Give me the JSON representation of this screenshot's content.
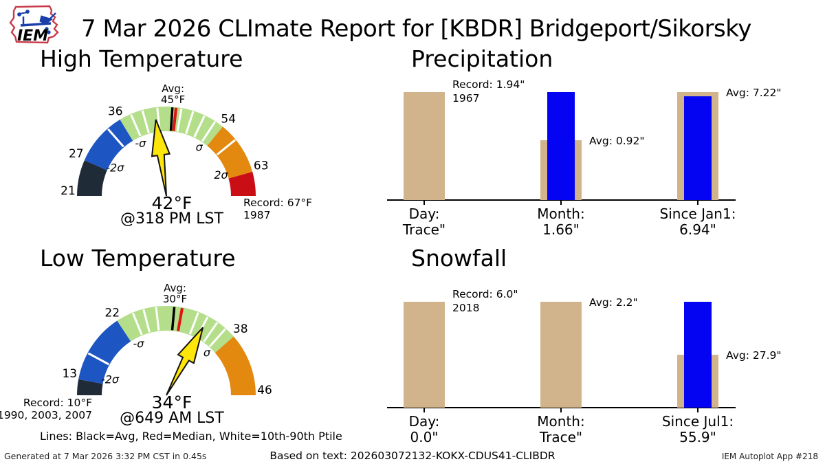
{
  "header": {
    "logo_text": "IEM",
    "title": "7 Mar 2026 CLImate Report for [KBDR] Bridgeport/Sikorsky"
  },
  "legend_note": "Lines: Black=Avg, Red=Median, White=10th-90th Ptile",
  "footer": {
    "generated": "Generated at 7 Mar 2026 3:32 PM CST in 0.45s",
    "based_on": "Based on text: 202603072132-KOKX-CDUS41-CLIBDR",
    "app": "IEM Autoplot App #218"
  },
  "colors": {
    "gauge_dark": "#202b38",
    "gauge_blue": "#1d56c2",
    "gauge_green": "#b4de8a",
    "gauge_orange": "#e4890f",
    "gauge_red": "#c90e15",
    "needle": "#ffe60a",
    "median_line": "#e01212",
    "avg_line": "#000000",
    "ptile_line": "#ffffff",
    "climo_tan": "#d2b48c",
    "actual_blue": "#0404f2"
  },
  "chart_data": [
    {
      "id": "high_temp",
      "type": "gauge",
      "title": "High Temperature",
      "gauge_min": 21,
      "gauge_max": 67,
      "segments": [
        {
          "from": 21,
          "to": 27,
          "color": "dark"
        },
        {
          "from": 27,
          "to": 36,
          "color": "blue"
        },
        {
          "from": 36,
          "to": 54,
          "color": "green"
        },
        {
          "from": 54,
          "to": 63,
          "color": "orange"
        },
        {
          "from": 63,
          "to": 67,
          "color": "red"
        }
      ],
      "boundary_labels": [
        21,
        27,
        36,
        54,
        63
      ],
      "sigma_labels": [
        {
          "value": 27,
          "text": "-2σ"
        },
        {
          "value": 36,
          "text": "-σ"
        },
        {
          "value": 54,
          "text": "σ"
        },
        {
          "value": 63,
          "text": "2σ"
        }
      ],
      "avg_label": [
        "Avg:",
        "45°F"
      ],
      "avg_line": 45,
      "median_line": 45.6,
      "percentile_ticks": [
        33.5,
        38,
        40,
        42.5,
        46.5,
        48.5,
        50.5,
        52.5,
        57
      ],
      "value": 42,
      "value_label": "42°F",
      "time_label": "@318 PM LST",
      "record_label": [
        "Record: 67°F",
        "1987"
      ],
      "record_side": "right"
    },
    {
      "id": "low_temp",
      "type": "gauge",
      "title": "Low Temperature",
      "gauge_min": 11,
      "gauge_max": 46,
      "segments": [
        {
          "from": 11,
          "to": 13,
          "color": "dark"
        },
        {
          "from": 13,
          "to": 22,
          "color": "blue"
        },
        {
          "from": 22,
          "to": 38,
          "color": "green"
        },
        {
          "from": 38,
          "to": 46,
          "color": "orange"
        }
      ],
      "boundary_labels": [
        13,
        22,
        38,
        46
      ],
      "sigma_labels": [
        {
          "value": 13,
          "text": "-2σ"
        },
        {
          "value": 22,
          "text": "-σ"
        },
        {
          "value": 38,
          "text": "σ"
        }
      ],
      "avg_label": [
        "Avg:",
        "30°F"
      ],
      "avg_line": 29.5,
      "median_line": 30.5,
      "percentile_ticks": [
        16.5,
        24.2,
        25.6,
        27.2,
        32.6,
        33.9,
        35.3,
        36.6
      ],
      "value": 34,
      "value_label": "34°F",
      "time_label": "@649 AM LST",
      "record_label": [
        "Record: 10°F",
        "1990, 2003, 2007"
      ],
      "record_side": "left"
    },
    {
      "id": "precip",
      "type": "grouped_bar",
      "title": "Precipitation",
      "groups": [
        {
          "label_line1": "Day:",
          "label_line2": "Trace\"",
          "climo_value": 1.94,
          "actual_value": null,
          "annotation": [
            "Record: 1.94\"",
            "1967"
          ]
        },
        {
          "label_line1": "Month:",
          "label_line2": "1.66\"",
          "climo_value": 0.92,
          "actual_value": 1.66,
          "annotation": [
            "Avg: 0.92\""
          ]
        },
        {
          "label_line1": "Since Jan1:",
          "label_line2": "6.94\"",
          "climo_value": 7.22,
          "actual_value": 6.94,
          "annotation": [
            "Avg: 7.22\""
          ]
        }
      ]
    },
    {
      "id": "snowfall",
      "type": "grouped_bar",
      "title": "Snowfall",
      "groups": [
        {
          "label_line1": "Day:",
          "label_line2": "0.0\"",
          "climo_value": 6.0,
          "actual_value": 0,
          "annotation": [
            "Record: 6.0\"",
            "2018"
          ]
        },
        {
          "label_line1": "Month:",
          "label_line2": "Trace\"",
          "climo_value": 2.2,
          "actual_value": null,
          "annotation": [
            "Avg: 2.2\""
          ]
        },
        {
          "label_line1": "Since Jul1:",
          "label_line2": "55.9\"",
          "climo_value": 27.9,
          "actual_value": 55.9,
          "annotation": [
            "Avg: 27.9\""
          ]
        }
      ]
    }
  ]
}
